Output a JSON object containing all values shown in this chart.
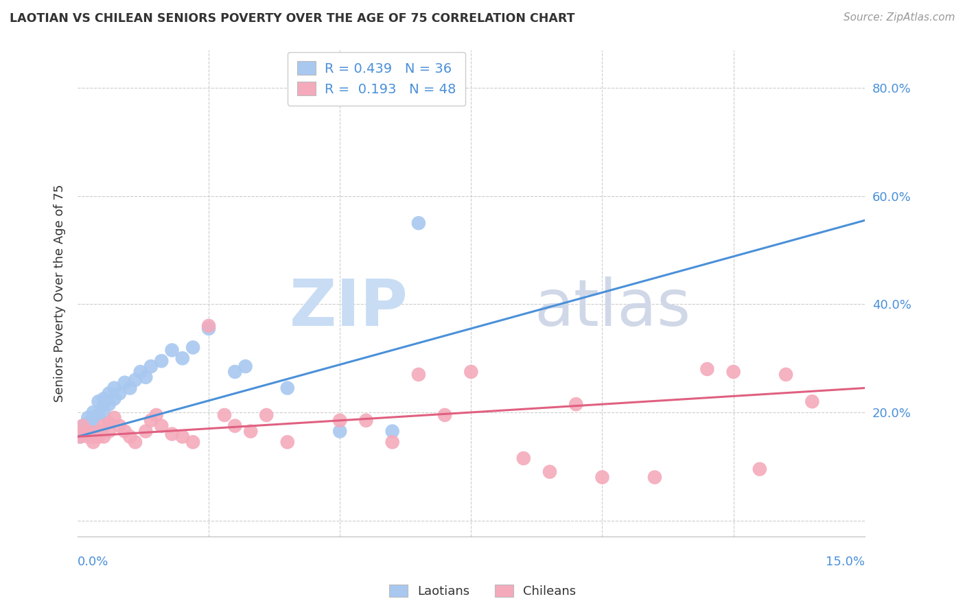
{
  "title": "LAOTIAN VS CHILEAN SENIORS POVERTY OVER THE AGE OF 75 CORRELATION CHART",
  "source": "Source: ZipAtlas.com",
  "ylabel": "Seniors Poverty Over the Age of 75",
  "xlim": [
    0.0,
    0.15
  ],
  "ylim": [
    -0.03,
    0.87
  ],
  "yticks": [
    0.0,
    0.2,
    0.4,
    0.6,
    0.8
  ],
  "ytick_labels": [
    "",
    "20.0%",
    "40.0%",
    "60.0%",
    "80.0%"
  ],
  "blue_color": "#A8C8F0",
  "pink_color": "#F4AABB",
  "blue_line_color": "#4A90D9",
  "pink_line_color": "#E06080",
  "legend_R_blue": "0.439",
  "legend_N_blue": "36",
  "legend_R_pink": "0.193",
  "legend_N_pink": "48",
  "blue_scatter_x": [
    0.0005,
    0.001,
    0.001,
    0.002,
    0.002,
    0.002,
    0.003,
    0.003,
    0.003,
    0.004,
    0.004,
    0.005,
    0.005,
    0.005,
    0.006,
    0.006,
    0.007,
    0.007,
    0.008,
    0.009,
    0.01,
    0.011,
    0.012,
    0.013,
    0.014,
    0.016,
    0.018,
    0.02,
    0.022,
    0.025,
    0.03,
    0.032,
    0.04,
    0.05,
    0.06,
    0.065
  ],
  "blue_scatter_y": [
    0.155,
    0.16,
    0.175,
    0.165,
    0.18,
    0.19,
    0.175,
    0.19,
    0.2,
    0.195,
    0.22,
    0.2,
    0.215,
    0.225,
    0.215,
    0.235,
    0.225,
    0.245,
    0.235,
    0.255,
    0.245,
    0.26,
    0.275,
    0.265,
    0.285,
    0.295,
    0.315,
    0.3,
    0.32,
    0.355,
    0.275,
    0.285,
    0.245,
    0.165,
    0.165,
    0.55
  ],
  "pink_scatter_x": [
    0.0005,
    0.001,
    0.001,
    0.002,
    0.002,
    0.003,
    0.003,
    0.003,
    0.004,
    0.004,
    0.005,
    0.005,
    0.006,
    0.006,
    0.007,
    0.008,
    0.009,
    0.01,
    0.011,
    0.013,
    0.014,
    0.015,
    0.016,
    0.018,
    0.02,
    0.022,
    0.025,
    0.028,
    0.03,
    0.033,
    0.036,
    0.04,
    0.05,
    0.055,
    0.06,
    0.065,
    0.07,
    0.075,
    0.085,
    0.09,
    0.095,
    0.1,
    0.11,
    0.12,
    0.125,
    0.13,
    0.135,
    0.14
  ],
  "pink_scatter_y": [
    0.155,
    0.16,
    0.175,
    0.155,
    0.165,
    0.16,
    0.155,
    0.145,
    0.155,
    0.165,
    0.155,
    0.175,
    0.165,
    0.18,
    0.19,
    0.175,
    0.165,
    0.155,
    0.145,
    0.165,
    0.185,
    0.195,
    0.175,
    0.16,
    0.155,
    0.145,
    0.36,
    0.195,
    0.175,
    0.165,
    0.195,
    0.145,
    0.185,
    0.185,
    0.145,
    0.27,
    0.195,
    0.275,
    0.115,
    0.09,
    0.215,
    0.08,
    0.08,
    0.28,
    0.275,
    0.095,
    0.27,
    0.22
  ],
  "blue_trend_x": [
    0.0,
    0.15
  ],
  "blue_trend_y": [
    0.155,
    0.555
  ],
  "pink_trend_x": [
    0.0,
    0.15
  ],
  "pink_trend_y": [
    0.155,
    0.245
  ],
  "watermark_zip": "ZIP",
  "watermark_atlas": "atlas",
  "background_color": "#FFFFFF",
  "grid_color": "#CCCCCC",
  "title_color": "#333333",
  "label_color": "#4A90D9"
}
